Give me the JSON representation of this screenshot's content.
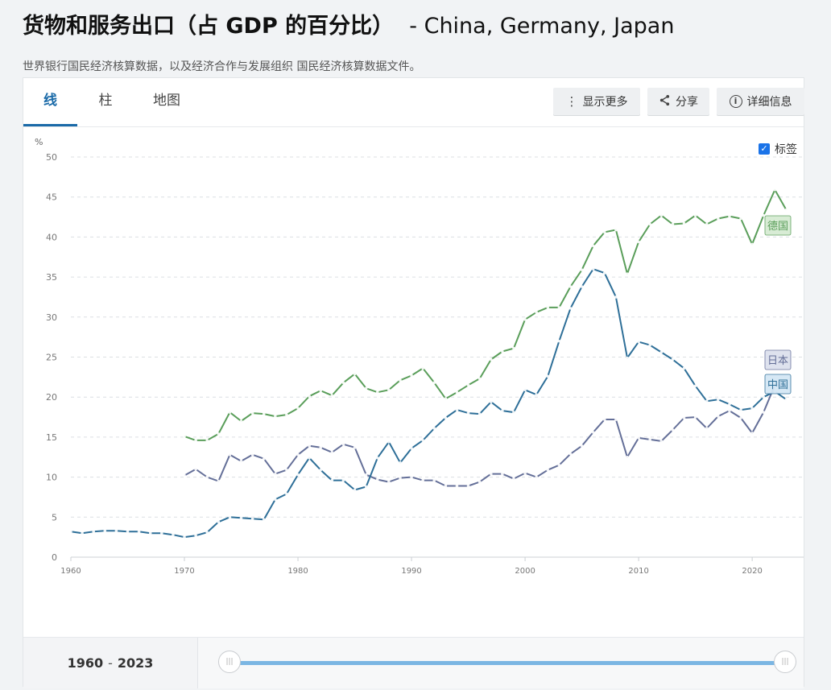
{
  "header": {
    "title": "货物和服务出口（占 GDP 的百分比）",
    "countries": "- China, Germany, Japan",
    "subtitle": "世界银行国民经济核算数据，以及经济合作与发展组织 国民经济核算数据文件。"
  },
  "tabs": [
    {
      "label": "线",
      "active": true
    },
    {
      "label": "柱",
      "active": false
    },
    {
      "label": "地图",
      "active": false
    }
  ],
  "toolbar": {
    "more_label": "显示更多",
    "share_label": "分享",
    "detail_label": "详细信息"
  },
  "labels_toggle": {
    "label": "标签",
    "checked": true
  },
  "range": {
    "start": "1960",
    "sep": "-",
    "end": "2023"
  },
  "chart_data": {
    "type": "line",
    "title": "",
    "xlabel": "",
    "ylabel": "%",
    "xlim": [
      1960,
      2023
    ],
    "ylim": [
      0,
      50
    ],
    "x_ticks": [
      1960,
      1970,
      1980,
      1990,
      2000,
      2010,
      2020
    ],
    "y_ticks": [
      0,
      5,
      10,
      15,
      20,
      25,
      30,
      35,
      40,
      45,
      50
    ],
    "grid": true,
    "series": [
      {
        "name": "德国",
        "color": "#5a9e5a",
        "label_bg": "#d6ecd3",
        "x": [
          1970,
          1971,
          1972,
          1973,
          1974,
          1975,
          1976,
          1977,
          1978,
          1979,
          1980,
          1981,
          1982,
          1983,
          1984,
          1985,
          1986,
          1987,
          1988,
          1989,
          1990,
          1991,
          1992,
          1993,
          1994,
          1995,
          1996,
          1997,
          1998,
          1999,
          2000,
          2001,
          2002,
          2003,
          2004,
          2005,
          2006,
          2007,
          2008,
          2009,
          2010,
          2011,
          2012,
          2013,
          2014,
          2015,
          2016,
          2017,
          2018,
          2019,
          2020,
          2021,
          2022,
          2023
        ],
        "y": [
          15.1,
          14.6,
          14.6,
          15.4,
          18.1,
          17.0,
          18.0,
          17.9,
          17.6,
          17.8,
          18.6,
          20.1,
          20.8,
          20.2,
          21.8,
          22.9,
          21.1,
          20.6,
          20.9,
          22.1,
          22.7,
          23.6,
          21.8,
          19.8,
          20.6,
          21.5,
          22.3,
          24.7,
          25.7,
          26.1,
          29.7,
          30.6,
          31.2,
          31.2,
          33.8,
          35.9,
          38.9,
          40.6,
          40.9,
          35.4,
          39.4,
          41.6,
          42.7,
          41.6,
          41.7,
          42.7,
          41.6,
          42.3,
          42.6,
          42.3,
          39.1,
          42.7,
          45.9,
          43.4
        ]
      },
      {
        "name": "日本",
        "color": "#646f98",
        "label_bg": "#dde1ee",
        "x": [
          1970,
          1971,
          1972,
          1973,
          1974,
          1975,
          1976,
          1977,
          1978,
          1979,
          1980,
          1981,
          1982,
          1983,
          1984,
          1985,
          1986,
          1987,
          1988,
          1989,
          1990,
          1991,
          1992,
          1993,
          1994,
          1995,
          1996,
          1997,
          1998,
          1999,
          2000,
          2001,
          2002,
          2003,
          2004,
          2005,
          2006,
          2007,
          2008,
          2009,
          2010,
          2011,
          2012,
          2013,
          2014,
          2015,
          2016,
          2017,
          2018,
          2019,
          2020,
          2021,
          2022,
          2023
        ],
        "y": [
          10.2,
          11.0,
          10.0,
          9.5,
          12.8,
          12.0,
          12.8,
          12.3,
          10.4,
          10.9,
          12.8,
          13.9,
          13.7,
          13.1,
          14.1,
          13.7,
          10.3,
          9.7,
          9.4,
          9.9,
          10.0,
          9.6,
          9.6,
          8.9,
          8.9,
          8.9,
          9.4,
          10.4,
          10.4,
          9.8,
          10.5,
          10.0,
          10.9,
          11.5,
          12.9,
          13.9,
          15.6,
          17.2,
          17.2,
          12.5,
          14.9,
          14.7,
          14.5,
          15.9,
          17.4,
          17.5,
          16.1,
          17.6,
          18.3,
          17.4,
          15.5,
          18.1,
          21.5,
          21.4
        ]
      },
      {
        "name": "中国",
        "color": "#2e6f98",
        "label_bg": "#d4e7f5",
        "x": [
          1960,
          1961,
          1962,
          1963,
          1964,
          1965,
          1966,
          1967,
          1968,
          1969,
          1970,
          1971,
          1972,
          1973,
          1974,
          1975,
          1976,
          1977,
          1978,
          1979,
          1980,
          1981,
          1982,
          1983,
          1984,
          1985,
          1986,
          1987,
          1988,
          1989,
          1990,
          1991,
          1992,
          1993,
          1994,
          1995,
          1996,
          1997,
          1998,
          1999,
          2000,
          2001,
          2002,
          2003,
          2004,
          2005,
          2006,
          2007,
          2008,
          2009,
          2010,
          2011,
          2012,
          2013,
          2014,
          2015,
          2016,
          2017,
          2018,
          2019,
          2020,
          2021,
          2022,
          2023
        ],
        "y": [
          3.2,
          3.0,
          3.2,
          3.3,
          3.3,
          3.2,
          3.2,
          3.0,
          3.0,
          2.8,
          2.5,
          2.7,
          3.1,
          4.4,
          5.0,
          4.9,
          4.8,
          4.7,
          7.2,
          7.9,
          10.3,
          12.4,
          10.9,
          9.6,
          9.6,
          8.4,
          8.8,
          12.4,
          14.4,
          11.8,
          13.6,
          14.6,
          16.1,
          17.4,
          18.4,
          18.0,
          17.9,
          19.4,
          18.3,
          18.1,
          20.9,
          20.3,
          22.6,
          27.0,
          31.1,
          33.8,
          36.0,
          35.5,
          32.5,
          24.9,
          26.9,
          26.5,
          25.6,
          24.7,
          23.6,
          21.4,
          19.5,
          19.7,
          19.1,
          18.4,
          18.6,
          20.0,
          20.7,
          19.7
        ]
      }
    ]
  }
}
